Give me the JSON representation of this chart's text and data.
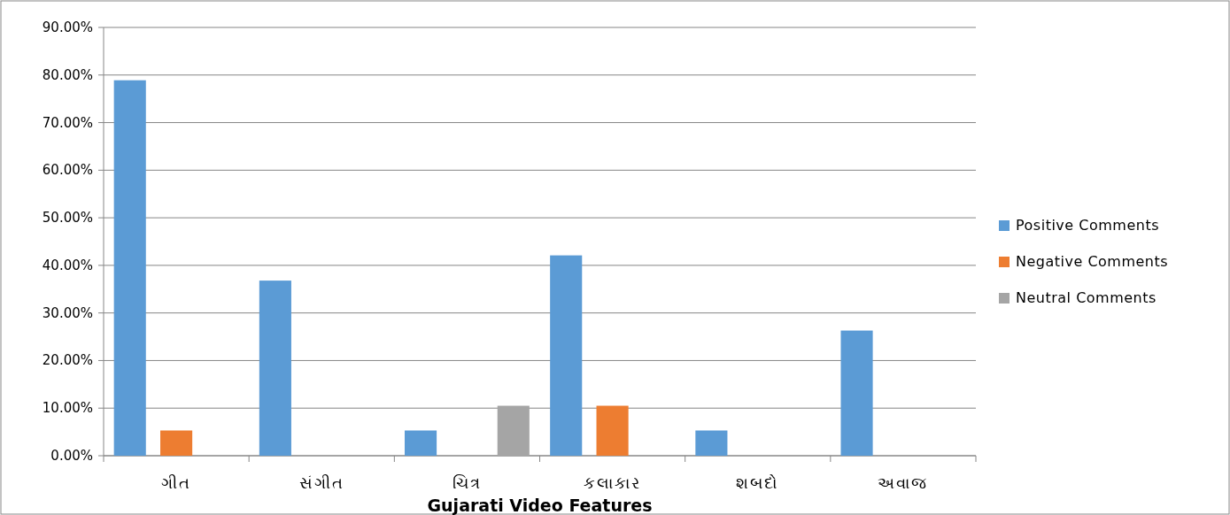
{
  "chart_data": {
    "type": "bar",
    "xlabel": "Gujarati Video Features",
    "categories": [
      "ગીત",
      "સંગીત",
      "ચિત્ર",
      "કલાકાર",
      "શબદો",
      "અવાજ"
    ],
    "series": [
      {
        "name": "Positive Comments",
        "color": "#5b9bd5",
        "values": [
          78.9,
          36.8,
          5.3,
          42.1,
          5.3,
          26.3
        ]
      },
      {
        "name": "Negative Comments",
        "color": "#ed7d31",
        "values": [
          5.3,
          0,
          0,
          10.5,
          0,
          0
        ]
      },
      {
        "name": "Neutral Comments",
        "color": "#a5a5a5",
        "values": [
          0,
          0,
          10.5,
          0,
          0,
          0
        ]
      }
    ],
    "ylim": [
      0,
      90
    ],
    "yticks": [
      {
        "value": 0,
        "label": "0.00%"
      },
      {
        "value": 10,
        "label": "10.00%"
      },
      {
        "value": 20,
        "label": "20.00%"
      },
      {
        "value": 30,
        "label": "30.00%"
      },
      {
        "value": 40,
        "label": "40.00%"
      },
      {
        "value": 50,
        "label": "50.00%"
      },
      {
        "value": 60,
        "label": "60.00%"
      },
      {
        "value": 70,
        "label": "70.00%"
      },
      {
        "value": 80,
        "label": "80.00%"
      },
      {
        "value": 90,
        "label": "90.00%"
      }
    ],
    "grid": "y",
    "legend": "right"
  }
}
